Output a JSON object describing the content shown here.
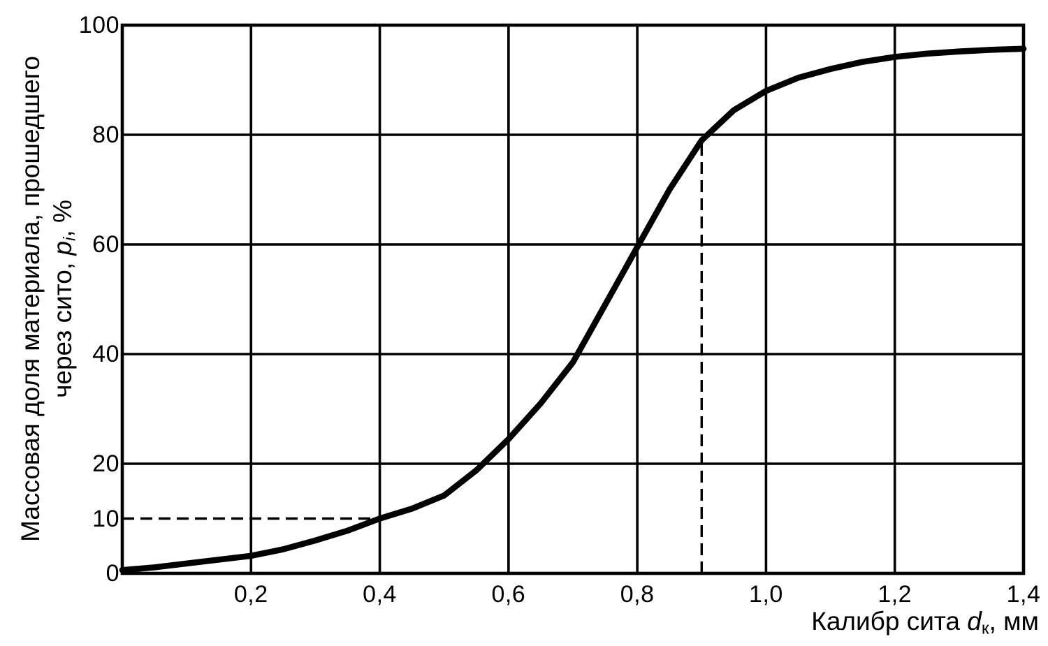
{
  "chart_data": {
    "type": "line",
    "grid": true,
    "legend": "none",
    "colors": {
      "ink": "#000000",
      "background": "#ffffff"
    },
    "x_axis": {
      "label": "Калибр сита dк, мм",
      "label_parts": {
        "prefix": "Калибр сита ",
        "symbol": "d",
        "subscript": "к",
        "suffix": ", мм"
      },
      "min": 0,
      "max": 1.4,
      "gridlines": [
        0.2,
        0.4,
        0.6,
        0.8,
        1.0,
        1.2
      ],
      "ticks": [
        {
          "value": 0.2,
          "label": "0,2"
        },
        {
          "value": 0.4,
          "label": "0,4"
        },
        {
          "value": 0.6,
          "label": "0,6"
        },
        {
          "value": 0.8,
          "label": "0,8"
        },
        {
          "value": 1.0,
          "label": "1,0"
        },
        {
          "value": 1.2,
          "label": "1,2"
        },
        {
          "value": 1.4,
          "label": "1,4"
        }
      ]
    },
    "y_axis": {
      "label": "Массовая доля материала, прошедшего через сито, pi, %",
      "label_line1": "Массовая доля материала, прошедшего",
      "label_line2_parts": {
        "prefix": "через сито, ",
        "symbol": "p",
        "subscript": "i",
        "suffix": ", %"
      },
      "min": 0,
      "max": 100,
      "gridlines": [
        20,
        40,
        60,
        80
      ],
      "ticks": [
        {
          "value": 100,
          "label": "100"
        },
        {
          "value": 80,
          "label": "80"
        },
        {
          "value": 60,
          "label": "60"
        },
        {
          "value": 40,
          "label": "40"
        },
        {
          "value": 20,
          "label": "20"
        },
        {
          "value": 10,
          "label": "10"
        },
        {
          "value": 0,
          "label": "0"
        }
      ]
    },
    "series": [
      {
        "name": "cumulative-mass-fraction-passing-curve",
        "style": "solid-thick",
        "points": [
          [
            0.0,
            0.6
          ],
          [
            0.05,
            1.1
          ],
          [
            0.1,
            1.8
          ],
          [
            0.15,
            2.5
          ],
          [
            0.2,
            3.2
          ],
          [
            0.25,
            4.4
          ],
          [
            0.3,
            6.0
          ],
          [
            0.35,
            7.8
          ],
          [
            0.4,
            10.0
          ],
          [
            0.45,
            11.8
          ],
          [
            0.5,
            14.2
          ],
          [
            0.55,
            18.8
          ],
          [
            0.6,
            24.5
          ],
          [
            0.65,
            31.0
          ],
          [
            0.7,
            38.5
          ],
          [
            0.75,
            49.0
          ],
          [
            0.8,
            59.5
          ],
          [
            0.85,
            70.0
          ],
          [
            0.9,
            79.0
          ],
          [
            0.95,
            84.5
          ],
          [
            1.0,
            88.0
          ],
          [
            1.05,
            90.4
          ],
          [
            1.1,
            92.0
          ],
          [
            1.15,
            93.3
          ],
          [
            1.2,
            94.2
          ],
          [
            1.25,
            94.8
          ],
          [
            1.3,
            95.2
          ],
          [
            1.35,
            95.5
          ],
          [
            1.4,
            95.7
          ]
        ]
      }
    ],
    "reference_lines": [
      {
        "orientation": "horizontal",
        "y": 10,
        "x_from": 0,
        "x_to": 0.4,
        "style": "dashed"
      },
      {
        "orientation": "vertical",
        "x": 0.9,
        "y_from": 0,
        "y_to": 79,
        "style": "dashed"
      }
    ]
  }
}
